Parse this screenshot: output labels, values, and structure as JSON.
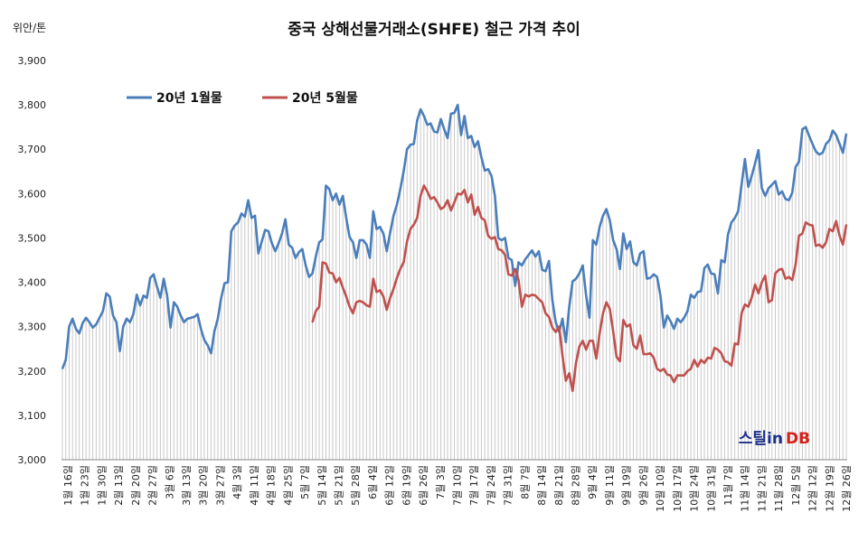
{
  "chart_data": {
    "type": "line",
    "title": "중국 상해선물거래소(SHFE) 철근 가격 추이",
    "ylabel": "위안/톤",
    "ylim": [
      3000,
      3900
    ],
    "yticks": [
      "3,000",
      "3,100",
      "3,200",
      "3,300",
      "3,400",
      "3,500",
      "3,600",
      "3,700",
      "3,800",
      "3,900"
    ],
    "xticks": [
      "1월 16일",
      "1월 23일",
      "1월 30일",
      "2월 13일",
      "2월 20일",
      "2월 27일",
      "3월 6일",
      "3월 13일",
      "3월 20일",
      "3월 27일",
      "4월 3일",
      "4월 11일",
      "4월 18일",
      "4월 25일",
      "5월 7일",
      "5월 14일",
      "5월 21일",
      "5월 28일",
      "6월 4일",
      "6월 12일",
      "6월 19일",
      "6월 26일",
      "7월 3일",
      "7월 10일",
      "7월 17일",
      "7월 24일",
      "7월 31일",
      "8월 7일",
      "8월 14일",
      "8월 21일",
      "8월 28일",
      "9월 4일",
      "9월 11일",
      "9월 19일",
      "9월 26일",
      "10월 10일",
      "10월 17일",
      "10월 24일",
      "10월 31일",
      "11월 7일",
      "11월 14일",
      "11월 21일",
      "11월 28일",
      "12월 5일",
      "12월 12일",
      "12월 19일",
      "12월 26일"
    ],
    "grid": "vertical-lines",
    "legend": "top-left",
    "series": [
      {
        "name": "20년 1월물",
        "color": "#4a7ebb",
        "start_index": 0,
        "values": [
          3205,
          3225,
          3300,
          3318,
          3295,
          3285,
          3308,
          3320,
          3310,
          3298,
          3305,
          3320,
          3335,
          3375,
          3368,
          3325,
          3310,
          3245,
          3300,
          3318,
          3310,
          3328,
          3372,
          3348,
          3370,
          3365,
          3410,
          3418,
          3390,
          3365,
          3408,
          3370,
          3298,
          3355,
          3345,
          3325,
          3310,
          3318,
          3320,
          3322,
          3328,
          3295,
          3270,
          3258,
          3240,
          3290,
          3318,
          3365,
          3398,
          3400,
          3515,
          3528,
          3535,
          3555,
          3548,
          3585,
          3545,
          3550,
          3465,
          3492,
          3518,
          3515,
          3488,
          3470,
          3488,
          3510,
          3542,
          3485,
          3478,
          3455,
          3468,
          3475,
          3438,
          3412,
          3420,
          3458,
          3490,
          3497,
          3618,
          3610,
          3585,
          3600,
          3575,
          3595,
          3545,
          3502,
          3490,
          3455,
          3495,
          3495,
          3485,
          3455,
          3560,
          3520,
          3525,
          3510,
          3470,
          3512,
          3550,
          3575,
          3610,
          3650,
          3700,
          3710,
          3712,
          3765,
          3790,
          3775,
          3755,
          3758,
          3740,
          3738,
          3768,
          3745,
          3725,
          3780,
          3782,
          3800,
          3732,
          3775,
          3725,
          3730,
          3705,
          3718,
          3682,
          3652,
          3655,
          3640,
          3595,
          3500,
          3495,
          3500,
          3455,
          3450,
          3392,
          3445,
          3438,
          3452,
          3462,
          3472,
          3458,
          3470,
          3428,
          3425,
          3448,
          3360,
          3310,
          3288,
          3318,
          3265,
          3345,
          3402,
          3408,
          3420,
          3438,
          3370,
          3320,
          3495,
          3485,
          3525,
          3550,
          3565,
          3540,
          3495,
          3475,
          3430,
          3510,
          3475,
          3492,
          3445,
          3438,
          3465,
          3470,
          3408,
          3410,
          3418,
          3412,
          3370,
          3298,
          3325,
          3312,
          3295,
          3318,
          3310,
          3320,
          3335,
          3372,
          3365,
          3378,
          3380,
          3432,
          3440,
          3420,
          3418,
          3375,
          3450,
          3445,
          3508,
          3535,
          3545,
          3560,
          3620,
          3678,
          3615,
          3640,
          3668,
          3698,
          3612,
          3595,
          3612,
          3620,
          3628,
          3598,
          3605,
          3588,
          3585,
          3602,
          3660,
          3672,
          3745,
          3750,
          3730,
          3712,
          3695,
          3688,
          3692,
          3712,
          3720,
          3742,
          3732,
          3712,
          3692,
          3735
        ]
      },
      {
        "name": "20년 5월물",
        "color": "#c0504d",
        "start_index": 74,
        "values": [
          3310,
          3335,
          3345,
          3445,
          3442,
          3422,
          3420,
          3400,
          3410,
          3388,
          3368,
          3345,
          3330,
          3355,
          3358,
          3355,
          3348,
          3345,
          3408,
          3378,
          3382,
          3368,
          3338,
          3365,
          3385,
          3410,
          3430,
          3445,
          3492,
          3520,
          3530,
          3545,
          3595,
          3618,
          3605,
          3588,
          3592,
          3580,
          3565,
          3570,
          3585,
          3562,
          3580,
          3600,
          3598,
          3608,
          3580,
          3598,
          3552,
          3570,
          3545,
          3540,
          3505,
          3498,
          3502,
          3475,
          3472,
          3462,
          3418,
          3415,
          3430,
          3405,
          3345,
          3372,
          3368,
          3372,
          3370,
          3362,
          3355,
          3330,
          3322,
          3298,
          3288,
          3300,
          3235,
          3178,
          3195,
          3155,
          3218,
          3255,
          3268,
          3248,
          3268,
          3268,
          3228,
          3285,
          3330,
          3355,
          3340,
          3290,
          3232,
          3222,
          3315,
          3300,
          3305,
          3258,
          3250,
          3280,
          3238,
          3238,
          3240,
          3230,
          3205,
          3200,
          3205,
          3192,
          3190,
          3175,
          3190,
          3190,
          3190,
          3200,
          3205,
          3225,
          3210,
          3225,
          3218,
          3230,
          3228,
          3252,
          3248,
          3240,
          3222,
          3220,
          3212,
          3262,
          3260,
          3330,
          3350,
          3345,
          3365,
          3395,
          3375,
          3400,
          3415,
          3355,
          3360,
          3420,
          3428,
          3430,
          3408,
          3412,
          3405,
          3440,
          3505,
          3510,
          3535,
          3530,
          3528,
          3482,
          3485,
          3478,
          3490,
          3520,
          3515,
          3538,
          3505,
          3485,
          3530
        ]
      }
    ]
  },
  "logo": {
    "text_a": "스틸in",
    "text_b": "DB",
    "color_a": "#1c2f8a",
    "color_b": "#d4201b"
  }
}
